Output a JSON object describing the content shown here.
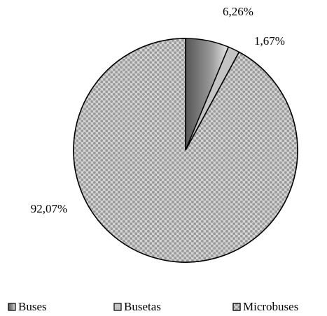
{
  "chart_data": {
    "type": "pie",
    "categories": [
      "Buses",
      "Busetas",
      "Microbuses"
    ],
    "values": [
      6.26,
      1.67,
      92.07
    ],
    "value_labels": [
      "6,26%",
      "1,67%",
      "92,07%"
    ],
    "colors": [
      "#6f6f6f",
      "#c4c4c4",
      "#d4d4d4"
    ],
    "textures": [
      "gradient",
      "plain",
      "dots"
    ],
    "legend": "bottom"
  }
}
